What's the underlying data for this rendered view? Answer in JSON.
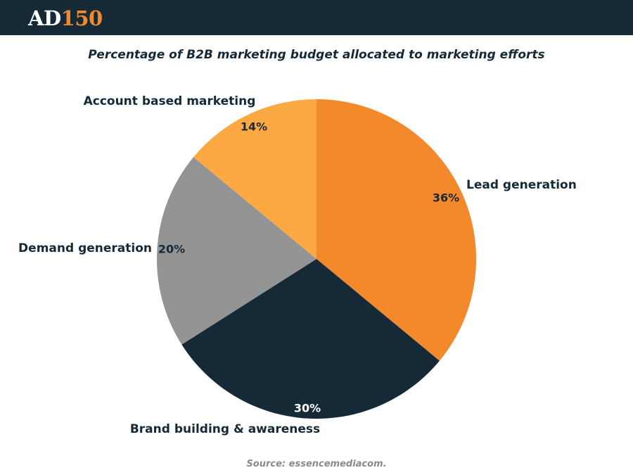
{
  "brand": {
    "logo_part1": "AD",
    "logo_part2": "150"
  },
  "chart_data": {
    "type": "pie",
    "title": "Percentage of B2B marketing budget allocated to marketing efforts",
    "slices": [
      {
        "label": "Lead generation",
        "value": 36,
        "value_label": "36%",
        "color": "#f4892b",
        "value_label_color": "#152a36"
      },
      {
        "label": "Brand building & awareness",
        "value": 30,
        "value_label": "30%",
        "color": "#152a36",
        "value_label_color": "#ffffff"
      },
      {
        "label": "Demand generation",
        "value": 20,
        "value_label": "20%",
        "color": "#949494",
        "value_label_color": "#152a36"
      },
      {
        "label": "Account based marketing",
        "value": 14,
        "value_label": "14%",
        "color": "#fca843",
        "value_label_color": "#152a36"
      }
    ],
    "start_angle_deg": 0,
    "direction": "clockwise"
  },
  "source": "Source: essencemediacom."
}
